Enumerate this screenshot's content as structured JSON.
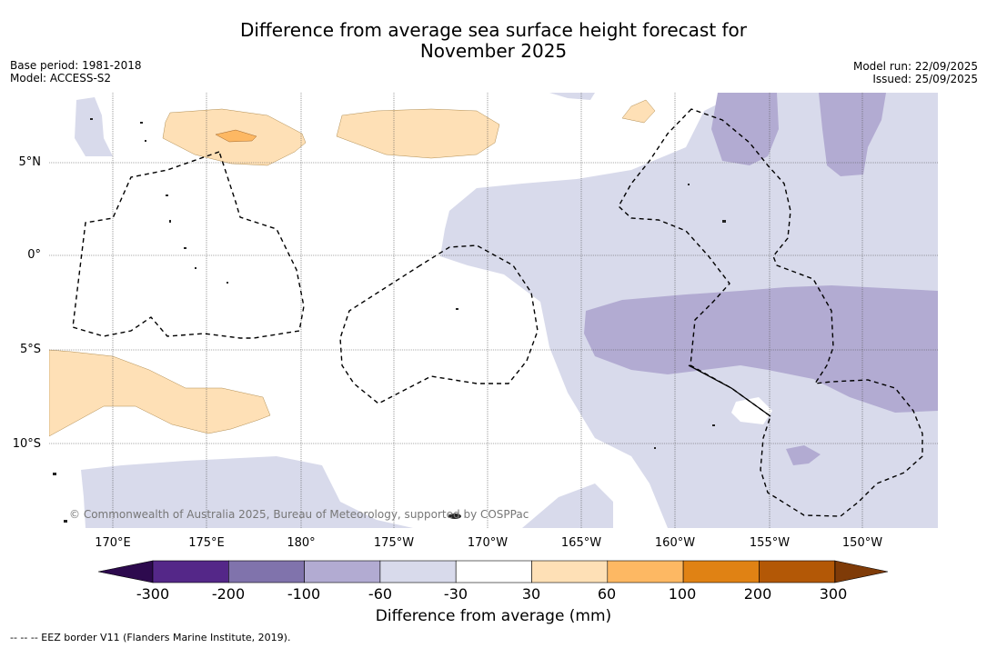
{
  "title": {
    "line1": "Difference from average sea surface height forecast for",
    "line2": "November 2025"
  },
  "meta_left": {
    "base_period": "Base period: 1981-2018",
    "model": "Model: ACCESS-S2"
  },
  "meta_right": {
    "model_run": "Model run: 22/09/2025",
    "issued": "Issued: 25/09/2025"
  },
  "map": {
    "lat_labels": [
      "5°N",
      "0°",
      "5°S",
      "10°S"
    ],
    "lon_labels": [
      "170°E",
      "175°E",
      "180°",
      "175°W",
      "170°W",
      "165°W",
      "160°W",
      "155°W",
      "150°W"
    ],
    "copyright": "© Commonwealth of Australia 2025, Bureau of Meteorology, supported by COSPPac"
  },
  "colorbar": {
    "title": "Difference from average (mm)",
    "ticks": [
      "-300",
      "-200",
      "-100",
      "-60",
      "-30",
      "30",
      "60",
      "100",
      "200",
      "300"
    ],
    "low_color": "#2d0a4e",
    "high_color": "#7f3b08",
    "colors": [
      "#542788",
      "#8073ac",
      "#b2abd2",
      "#d8daeb",
      "#ffffff",
      "#fee0b6",
      "#fdb863",
      "#e08214",
      "#b35806"
    ]
  },
  "legend": {
    "eez_note": "--  --  -- EEZ border V11 (Flanders Marine Institute, 2019)."
  }
}
